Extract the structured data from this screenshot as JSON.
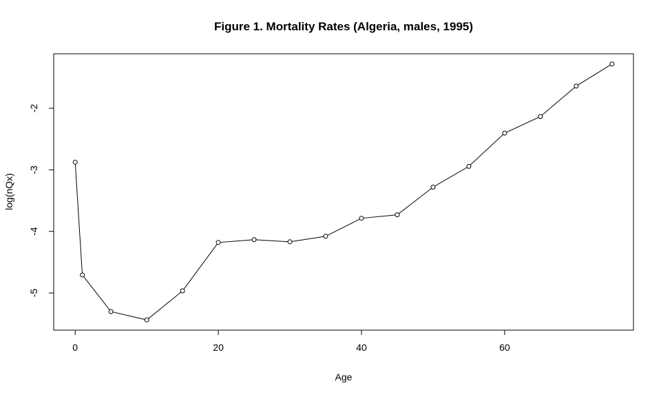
{
  "chart_data": {
    "type": "line",
    "title": "Figure 1. Mortality Rates (Algeria, males, 1995)",
    "x_label": "Age",
    "y_label": "log(nQx)",
    "x": [
      0,
      1,
      5,
      10,
      15,
      20,
      25,
      30,
      35,
      40,
      45,
      50,
      55,
      60,
      65,
      70,
      75
    ],
    "values": [
      -2.876,
      -4.708,
      -5.303,
      -5.438,
      -4.966,
      -4.18,
      -4.135,
      -4.169,
      -4.079,
      -3.787,
      -3.73,
      -3.281,
      -2.944,
      -2.404,
      -2.135,
      -1.64,
      -1.281
    ],
    "color": "#000000",
    "xlim": [
      -3,
      78
    ],
    "ylim": [
      -5.604,
      -1.115
    ],
    "xticks": [
      0,
      20,
      40,
      60
    ],
    "yticks": [
      -5,
      -4,
      -3,
      -2
    ],
    "grid": false
  }
}
